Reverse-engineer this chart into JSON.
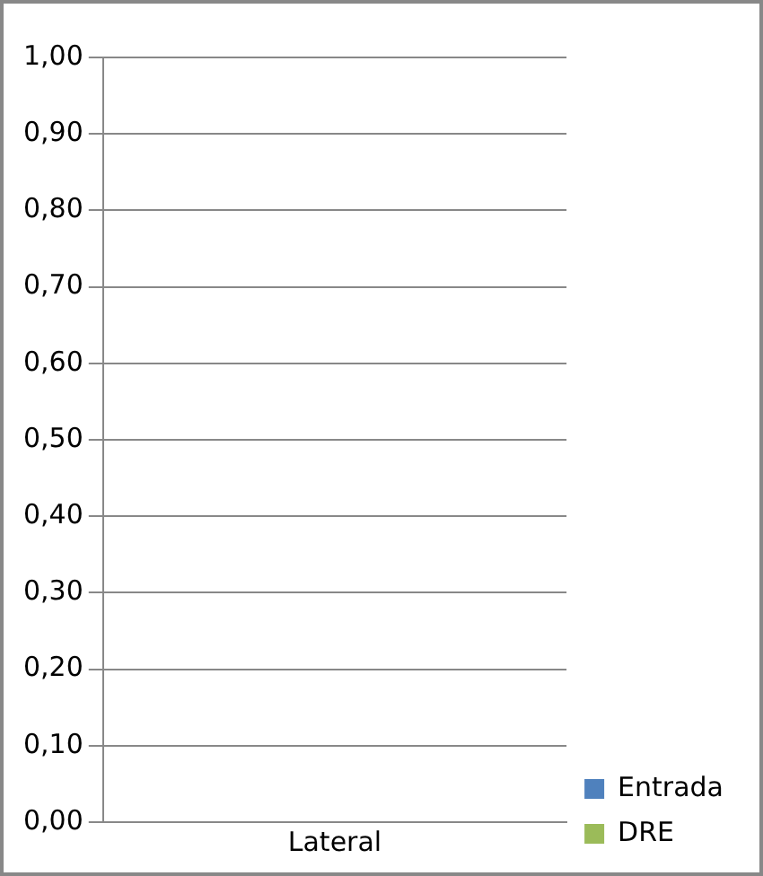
{
  "chart_data": {
    "type": "bar",
    "categories": [
      "Lateral"
    ],
    "series": [
      {
        "name": "Entrada",
        "color": "#4f81bd",
        "values": [
          0
        ]
      },
      {
        "name": "DRE",
        "color": "#9bbb59",
        "values": [
          0
        ]
      }
    ],
    "ylim": [
      0,
      1
    ],
    "yticks": [
      {
        "value": 0,
        "label": "0,00"
      },
      {
        "value": 0.1,
        "label": "0,10"
      },
      {
        "value": 0.2,
        "label": "0,20"
      },
      {
        "value": 0.3,
        "label": "0,30"
      },
      {
        "value": 0.4,
        "label": "0,40"
      },
      {
        "value": 0.5,
        "label": "0,50"
      },
      {
        "value": 0.6,
        "label": "0,60"
      },
      {
        "value": 0.7,
        "label": "0,70"
      },
      {
        "value": 0.8,
        "label": "0,80"
      },
      {
        "value": 0.9,
        "label": "0,90"
      },
      {
        "value": 1,
        "label": "1,00"
      }
    ],
    "grid": "y",
    "legend": "bottom right"
  }
}
